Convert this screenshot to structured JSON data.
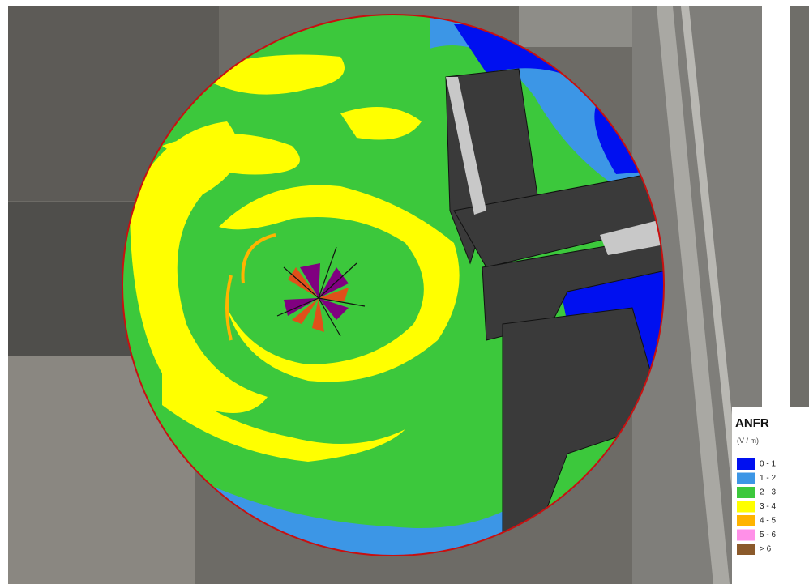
{
  "legend": {
    "title": "ANFR",
    "unit": "(V / m)",
    "items": [
      {
        "label": "0 - 1",
        "color": "#0010f0"
      },
      {
        "label": "1 - 2",
        "color": "#3c96e6"
      },
      {
        "label": "2 - 3",
        "color": "#3cc83c"
      },
      {
        "label": "3 - 4",
        "color": "#ffff00"
      },
      {
        "label": "4 - 5",
        "color": "#ffb400"
      },
      {
        "label": "5 - 6",
        "color": "#ff90e8"
      },
      {
        "label": "> 6",
        "color": "#8b5a2b"
      }
    ]
  }
}
